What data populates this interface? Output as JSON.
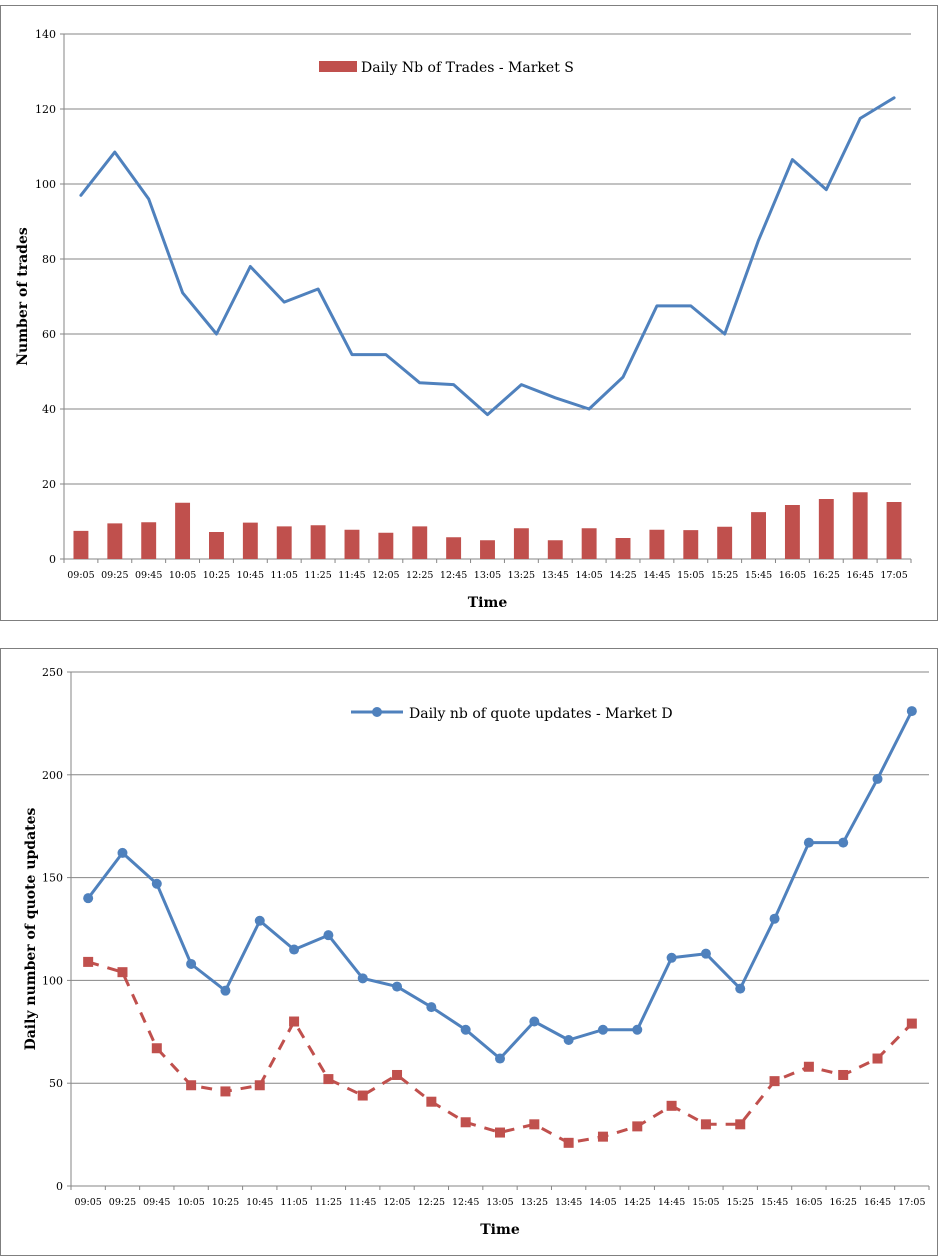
{
  "chart_data": [
    {
      "type": "bar+line",
      "title": "",
      "xlabel": "Time",
      "ylabel": "Number of trades",
      "ylim": [
        0,
        140
      ],
      "yticks": [
        0,
        20,
        40,
        60,
        80,
        100,
        120,
        140
      ],
      "grid": true,
      "legend_position": "top-center",
      "categories": [
        "09:05",
        "09:25",
        "09:45",
        "10:05",
        "10:25",
        "10:45",
        "11:05",
        "11:25",
        "11:45",
        "12:05",
        "12:25",
        "12:45",
        "13:05",
        "13:25",
        "13:45",
        "14:05",
        "14:25",
        "14:45",
        "15:05",
        "15:25",
        "15:45",
        "16:05",
        "16:25",
        "16:45",
        "17:05"
      ],
      "series": [
        {
          "name": "Daily Nb of Trades - Market S",
          "kind": "bar",
          "color": "#c0504d",
          "values": [
            7.5,
            9.5,
            9.8,
            15,
            7.2,
            9.7,
            8.7,
            9,
            7.8,
            7,
            8.7,
            5.8,
            5,
            8.2,
            5,
            8.2,
            5.6,
            7.8,
            7.7,
            8.6,
            12.5,
            14.4,
            16,
            17.8,
            15.2
          ]
        },
        {
          "name": "",
          "kind": "line",
          "color": "#4f81bd",
          "values": [
            97,
            108.5,
            96,
            71,
            60,
            78,
            68.5,
            72,
            54.5,
            54.5,
            47,
            46.5,
            38.5,
            46.5,
            43,
            40,
            48.5,
            67.5,
            67.5,
            60,
            85,
            106.5,
            98.5,
            117.5,
            123
          ]
        }
      ]
    },
    {
      "type": "line",
      "title": "",
      "xlabel": "Time",
      "ylabel": "Daily number of quote updates",
      "ylim": [
        0,
        250
      ],
      "yticks": [
        0,
        50,
        100,
        150,
        200,
        250
      ],
      "grid": true,
      "legend_position": "top-center",
      "categories": [
        "09:05",
        "09:25",
        "09:45",
        "10:05",
        "10:25",
        "10:45",
        "11:05",
        "11:25",
        "11:45",
        "12:05",
        "12:25",
        "12:45",
        "13:05",
        "13:25",
        "13:45",
        "14:05",
        "14:25",
        "14:45",
        "15:05",
        "15:25",
        "15:45",
        "16:05",
        "16:25",
        "16:45",
        "17:05"
      ],
      "series": [
        {
          "name": "Daily nb of quote updates - Market D",
          "kind": "line-circle",
          "color": "#4f81bd",
          "values": [
            140,
            162,
            147,
            108,
            95,
            129,
            115,
            122,
            101,
            97,
            87,
            76,
            62,
            80,
            71,
            76,
            76,
            111,
            113,
            96,
            130,
            167,
            167,
            198,
            231
          ]
        },
        {
          "name": "",
          "kind": "dashed-square",
          "color": "#c0504d",
          "values": [
            109,
            104,
            67,
            49,
            46,
            49,
            80,
            52,
            44,
            54,
            41,
            31,
            26,
            30,
            21,
            24,
            29,
            39,
            30,
            30,
            51,
            58,
            54,
            62,
            79
          ]
        }
      ]
    }
  ]
}
